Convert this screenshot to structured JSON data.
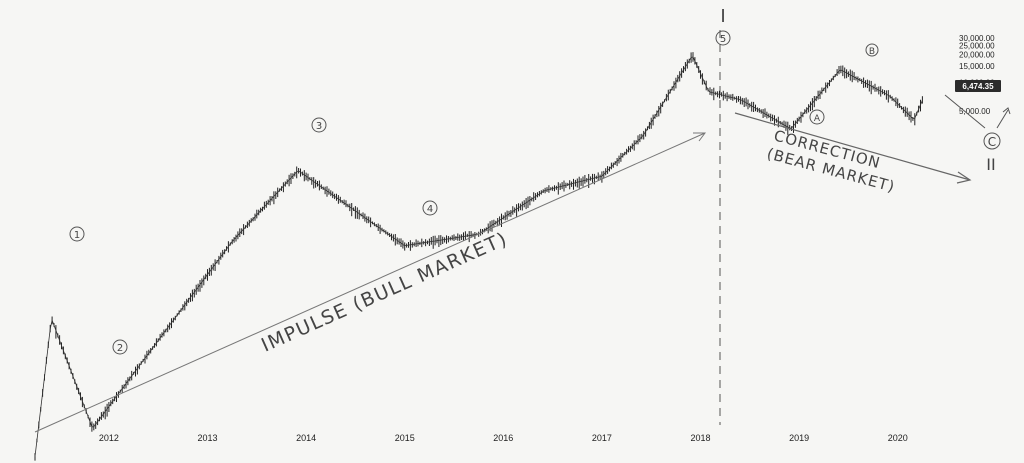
{
  "chart_data": {
    "type": "line",
    "title": "",
    "xlabel": "",
    "ylabel": "",
    "x_tick_labels": [
      "2012",
      "2013",
      "2014",
      "2015",
      "2016",
      "2017",
      "2018",
      "2019",
      "2020"
    ],
    "y_tick_labels": [
      "30,000.00",
      "25,000.00",
      "20,000.00",
      "15,000.00",
      "10,000.00",
      "5,000.00"
    ],
    "y_scale": "log",
    "last_price": "6,474.35",
    "series": [
      {
        "x": [
          "2011-04",
          "2011-06",
          "2011-11",
          "2013-04",
          "2013-12",
          "2015-01",
          "2015-10",
          "2016-06",
          "2017-01",
          "2017-06",
          "2017-12",
          "2018-02",
          "2018-06",
          "2018-12",
          "2019-06",
          "2019-12",
          "2020-03",
          "2020-04"
        ],
        "values": [
          1,
          30,
          2,
          200,
          1150,
          180,
          240,
          700,
          1000,
          2700,
          19500,
          8000,
          6500,
          3200,
          13800,
          7200,
          4000,
          6474
        ]
      }
    ]
  },
  "annotations": {
    "wave1": "1",
    "wave2": "2",
    "wave3": "3",
    "wave4": "4",
    "wave5": "5",
    "waveA": "A",
    "waveB": "B",
    "waveC": "C",
    "degree_I": "I",
    "degree_II": "II",
    "impulse_label": "IMPULSE (BULL MARKET)",
    "correction_line1": "CORRECTION",
    "correction_line2": "(BEAR MARKET)"
  }
}
